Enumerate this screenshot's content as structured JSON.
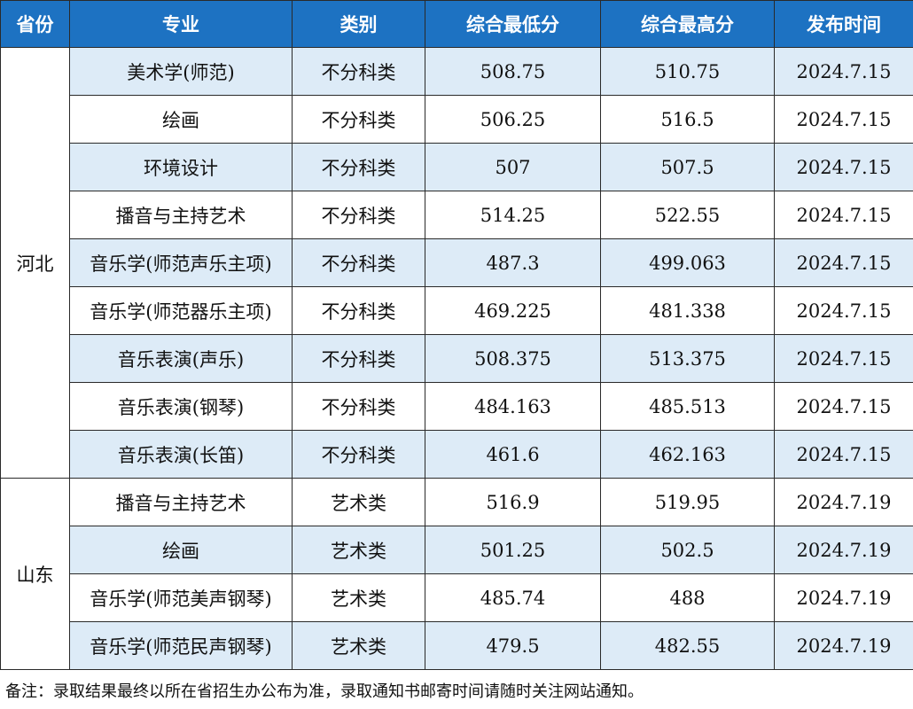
{
  "headers": [
    "省份",
    "专业",
    "类别",
    "综合最低分",
    "综合最高分",
    "发布时间"
  ],
  "groups": [
    {
      "province": "河北",
      "rows": [
        {
          "major": "美术学(师范)",
          "category": "不分科类",
          "min": "508.75",
          "max": "510.75",
          "date": "2024.7.15"
        },
        {
          "major": "绘画",
          "category": "不分科类",
          "min": "506.25",
          "max": "516.5",
          "date": "2024.7.15"
        },
        {
          "major": "环境设计",
          "category": "不分科类",
          "min": "507",
          "max": "507.5",
          "date": "2024.7.15"
        },
        {
          "major": "播音与主持艺术",
          "category": "不分科类",
          "min": "514.25",
          "max": "522.55",
          "date": "2024.7.15"
        },
        {
          "major": "音乐学(师范声乐主项)",
          "category": "不分科类",
          "min": "487.3",
          "max": "499.063",
          "date": "2024.7.15"
        },
        {
          "major": "音乐学(师范器乐主项)",
          "category": "不分科类",
          "min": "469.225",
          "max": "481.338",
          "date": "2024.7.15"
        },
        {
          "major": "音乐表演(声乐)",
          "category": "不分科类",
          "min": "508.375",
          "max": "513.375",
          "date": "2024.7.15"
        },
        {
          "major": "音乐表演(钢琴)",
          "category": "不分科类",
          "min": "484.163",
          "max": "485.513",
          "date": "2024.7.15"
        },
        {
          "major": "音乐表演(长笛)",
          "category": "不分科类",
          "min": "461.6",
          "max": "462.163",
          "date": "2024.7.15"
        }
      ]
    },
    {
      "province": "山东",
      "rows": [
        {
          "major": "播音与主持艺术",
          "category": "艺术类",
          "min": "516.9",
          "max": "519.95",
          "date": "2024.7.19"
        },
        {
          "major": "绘画",
          "category": "艺术类",
          "min": "501.25",
          "max": "502.5",
          "date": "2024.7.19"
        },
        {
          "major": "音乐学(师范美声钢琴)",
          "category": "艺术类",
          "min": "485.74",
          "max": "488",
          "date": "2024.7.19"
        },
        {
          "major": "音乐学(师范民声钢琴)",
          "category": "艺术类",
          "min": "479.5",
          "max": "482.55",
          "date": "2024.7.19"
        }
      ]
    }
  ],
  "note": "备注：录取结果最终以所在省招生办公布为准，录取通知书邮寄时间请随时关注网站通知。",
  "colors": {
    "header_bg": "#1d72c2",
    "header_text": "#ffffff",
    "stripe_bg": "#ddebf7",
    "border": "#2a2a2a"
  }
}
